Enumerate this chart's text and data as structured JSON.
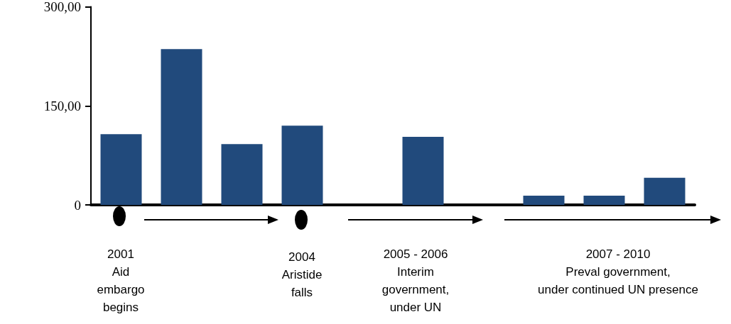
{
  "chart_data": {
    "type": "bar",
    "categories": [
      null,
      null,
      null,
      null,
      null,
      null,
      null,
      null,
      null,
      null
    ],
    "values": [
      107,
      236,
      92,
      120,
      null,
      103,
      null,
      14,
      14,
      41
    ],
    "color": "#214a7c",
    "ylim": [
      0,
      300
    ],
    "yticks": [
      0,
      {
        "value": 150,
        "label": "150,00"
      },
      {
        "value": 300,
        "label": "300,00"
      }
    ],
    "grid": false,
    "annotations": [
      "2001\nAid\nembargo\nbegins",
      "2004\nAristide\nfalls",
      "2005 - 2006\nInterim\ngovernment,\nunder UN",
      "2007 - 2010\nPreval government,\nunder continued UN presence"
    ]
  }
}
